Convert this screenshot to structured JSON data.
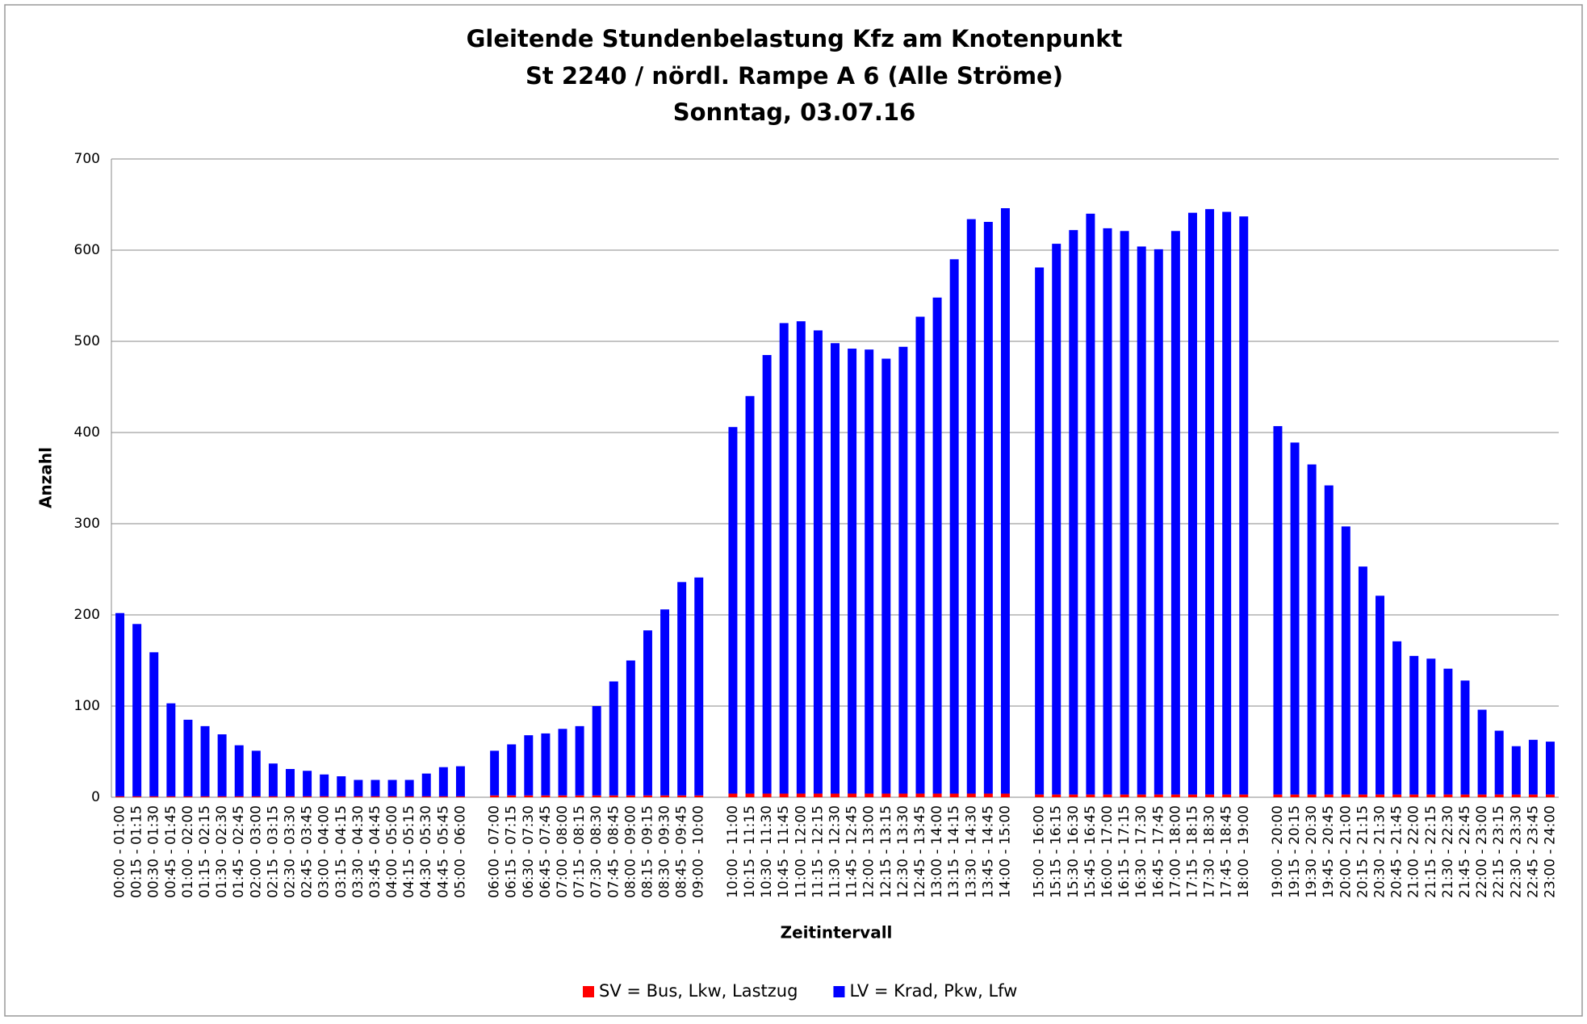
{
  "chart_data": {
    "type": "stacked_bar",
    "title": [
      "Gleitende Stundenbelastung Kfz am Knotenpunkt",
      "St 2240 / nördl. Rampe A 6 (Alle Ströme)",
      "Sonntag, 03.07.16"
    ],
    "x_label": "Zeitintervall",
    "y_label": "Anzahl",
    "categories": [
      "00:00 - 01:00",
      "00:15 - 01:15",
      "00:30 - 01:30",
      "00:45 - 01:45",
      "01:00 - 02:00",
      "01:15 - 02:15",
      "01:30 - 02:30",
      "01:45 - 02:45",
      "02:00 - 03:00",
      "02:15 - 03:15",
      "02:30 - 03:30",
      "02:45 - 03:45",
      "03:00 - 04:00",
      "03:15 - 04:15",
      "03:30 - 04:30",
      "03:45 - 04:45",
      "04:00 - 05:00",
      "04:15 - 05:15",
      "04:30 - 05:30",
      "04:45 - 05:45",
      "05:00 - 06:00",
      null,
      "06:00 - 07:00",
      "06:15 - 07:15",
      "06:30 - 07:30",
      "06:45 - 07:45",
      "07:00 - 08:00",
      "07:15 - 08:15",
      "07:30 - 08:30",
      "07:45 - 08:45",
      "08:00 - 09:00",
      "08:15 - 09:15",
      "08:30 - 09:30",
      "08:45 - 09:45",
      "09:00 - 10:00",
      null,
      "10:00 - 11:00",
      "10:15 - 11:15",
      "10:30 - 11:30",
      "10:45 - 11:45",
      "11:00 - 12:00",
      "11:15 - 12:15",
      "11:30 - 12:30",
      "11:45 - 12:45",
      "12:00 - 13:00",
      "12:15 - 13:15",
      "12:30 - 13:30",
      "12:45 - 13:45",
      "13:00 - 14:00",
      "13:15 - 14:15",
      "13:30 - 14:30",
      "13:45 - 14:45",
      "14:00 - 15:00",
      null,
      "15:00 - 16:00",
      "15:15 - 16:15",
      "15:30 - 16:30",
      "15:45 - 16:45",
      "16:00 - 17:00",
      "16:15 - 17:15",
      "16:30 - 17:30",
      "16:45 - 17:45",
      "17:00 - 18:00",
      "17:15 - 18:15",
      "17:30 - 18:30",
      "17:45 - 18:45",
      "18:00 - 19:00",
      null,
      "19:00 - 20:00",
      "19:15 - 20:15",
      "19:30 - 20:30",
      "19:45 - 20:45",
      "20:00 - 21:00",
      "20:15 - 21:15",
      "20:30 - 21:30",
      "20:45 - 21:45",
      "21:00 - 22:00",
      "21:15 - 22:15",
      "21:30 - 22:30",
      "21:45 - 22:45",
      "22:00 - 23:00",
      "22:15 - 23:15",
      "22:30 - 23:30",
      "22:45 - 23:45",
      "23:00 - 24:00"
    ],
    "series": [
      {
        "name": "SV = Bus, Lkw, Lastzug",
        "color": "#ff0000",
        "values": [
          1,
          1,
          1,
          1,
          1,
          1,
          1,
          1,
          1,
          1,
          1,
          1,
          1,
          1,
          1,
          1,
          1,
          1,
          1,
          1,
          1,
          null,
          2,
          2,
          2,
          2,
          2,
          2,
          2,
          2,
          2,
          2,
          2,
          2,
          2,
          null,
          4,
          4,
          4,
          4,
          4,
          4,
          4,
          4,
          4,
          4,
          4,
          4,
          4,
          4,
          4,
          4,
          4,
          null,
          3,
          3,
          3,
          3,
          3,
          3,
          3,
          3,
          3,
          3,
          3,
          3,
          3,
          null,
          3,
          3,
          3,
          3,
          3,
          3,
          3,
          3,
          3,
          3,
          3,
          3,
          3,
          3,
          3,
          3,
          3
        ]
      },
      {
        "name": "LV = Krad, Pkw, Lfw",
        "color": "#0000ff",
        "values": [
          201,
          189,
          158,
          102,
          84,
          77,
          68,
          56,
          50,
          36,
          30,
          28,
          24,
          22,
          18,
          18,
          18,
          18,
          25,
          32,
          33,
          null,
          49,
          56,
          66,
          68,
          73,
          76,
          98,
          125,
          148,
          181,
          204,
          234,
          239,
          null,
          402,
          436,
          481,
          516,
          518,
          508,
          494,
          488,
          487,
          477,
          490,
          523,
          544,
          586,
          630,
          627,
          642,
          null,
          578,
          604,
          619,
          637,
          621,
          618,
          601,
          598,
          618,
          638,
          642,
          639,
          634,
          null,
          404,
          386,
          362,
          339,
          294,
          250,
          218,
          168,
          152,
          149,
          138,
          125,
          93,
          70,
          53,
          60,
          58
        ]
      }
    ],
    "ylim": [
      0,
      700
    ],
    "yticks": [
      0,
      100,
      200,
      300,
      400,
      500,
      600,
      700
    ],
    "grid": true,
    "legend": "bottom"
  }
}
